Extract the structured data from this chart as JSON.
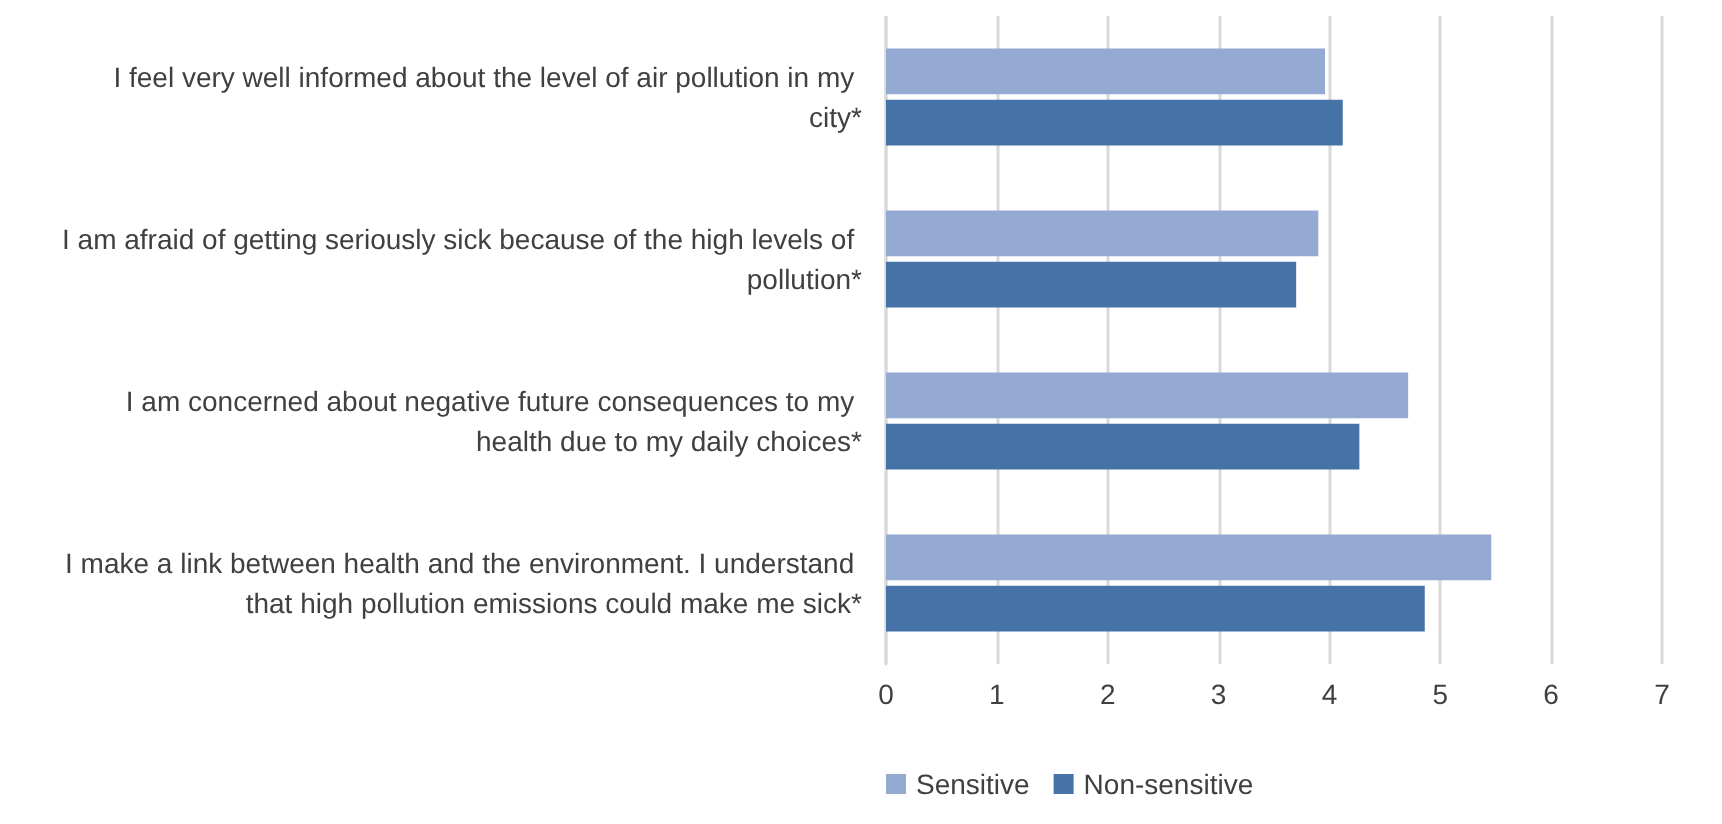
{
  "chart_data": {
    "type": "bar",
    "orientation": "horizontal",
    "categories": [
      "I feel very well informed about the level of air pollution in my city*",
      "I am afraid of getting seriously sick because of the high levels of pollution*",
      "I am concerned about negative future consequences to my health due to my daily choices*",
      "I make a link between health and the environment. I understand that high pollution emissions could make me sick*"
    ],
    "series": [
      {
        "name": "Sensitive",
        "color": "#95aad3",
        "values": [
          3.96,
          3.9,
          4.71,
          5.46
        ]
      },
      {
        "name": "Non-sensitive",
        "color": "#4573a7",
        "values": [
          4.12,
          3.7,
          4.27,
          4.86
        ]
      }
    ],
    "xlim": [
      0,
      7
    ],
    "xticks": [
      0,
      1,
      2,
      3,
      4,
      5,
      6,
      7
    ],
    "grid": "x",
    "legend": "bottom"
  }
}
